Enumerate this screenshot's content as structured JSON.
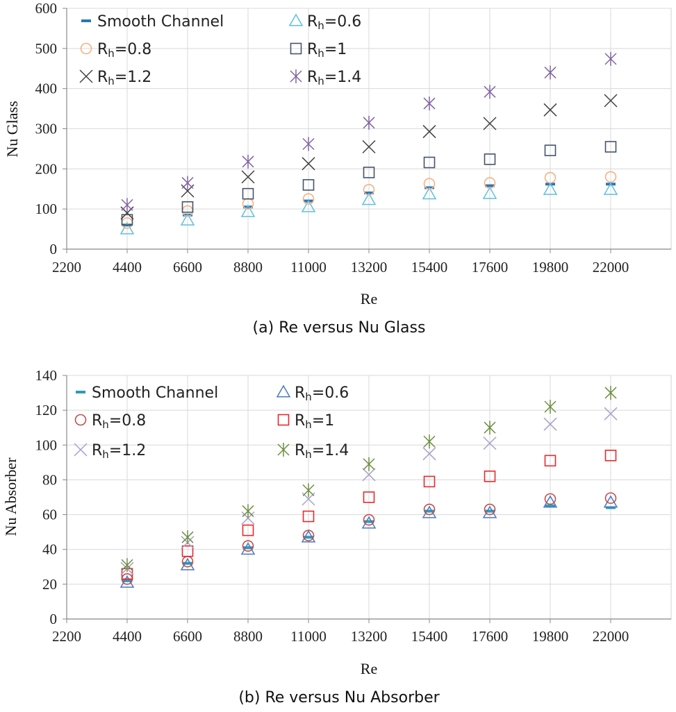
{
  "chart_data": [
    {
      "type": "scatter",
      "caption": "(a) Re versus Nu Glass",
      "xlabel": "Re",
      "ylabel": "Nu Glass",
      "x_ticks": [
        "2200",
        "4400",
        "6600",
        "8800",
        "11000",
        "13200",
        "15400",
        "17600",
        "19800",
        "22000"
      ],
      "y_ticks": [
        "0",
        "100",
        "200",
        "300",
        "400",
        "500",
        "600"
      ],
      "xlim": [
        2200,
        24200
      ],
      "ylim": [
        0,
        600
      ],
      "grid": true,
      "legend": "top-left, 2 columns",
      "series": [
        {
          "name": "Smooth Channel",
          "marker": "dash",
          "color": "#2e75b6",
          "x": [
            4400,
            6600,
            8800,
            11000,
            13200,
            15400,
            17600,
            19800,
            22000
          ],
          "y": [
            60,
            85,
            105,
            120,
            140,
            153,
            158,
            162,
            162
          ]
        },
        {
          "name": "0.6",
          "marker": "triangle",
          "color": "#5bc0de",
          "x": [
            4400,
            6600,
            8800,
            11000,
            13200,
            15400,
            17600,
            19800,
            22000
          ],
          "y": [
            50,
            72,
            93,
            105,
            123,
            137,
            138,
            148,
            148
          ]
        },
        {
          "name": "0.8",
          "marker": "circle",
          "color": "#f4b183",
          "x": [
            4400,
            6600,
            8800,
            11000,
            13200,
            15400,
            17600,
            19800,
            22000
          ],
          "y": [
            65,
            95,
            113,
            125,
            148,
            163,
            165,
            178,
            180
          ]
        },
        {
          "name": "1",
          "marker": "square",
          "color": "#44546a",
          "x": [
            4400,
            6600,
            8800,
            11000,
            13200,
            15400,
            17600,
            19800,
            22000
          ],
          "y": [
            73,
            105,
            138,
            160,
            191,
            216,
            224,
            246,
            255
          ]
        },
        {
          "name": "1.2",
          "marker": "x",
          "color": "#404040",
          "x": [
            4400,
            6600,
            8800,
            11000,
            13200,
            15400,
            17600,
            19800,
            22000
          ],
          "y": [
            90,
            145,
            180,
            213,
            255,
            293,
            313,
            347,
            370
          ]
        },
        {
          "name": "1.4",
          "marker": "star",
          "color": "#8064a2",
          "x": [
            4400,
            6600,
            8800,
            11000,
            13200,
            15400,
            17600,
            19800,
            22000
          ],
          "y": [
            110,
            165,
            218,
            262,
            315,
            363,
            392,
            440,
            474
          ]
        }
      ]
    },
    {
      "type": "scatter",
      "caption": "(b) Re versus Nu Absorber",
      "xlabel": "Re",
      "ylabel": "Nu Absorber",
      "x_ticks": [
        "2200",
        "4400",
        "6600",
        "8800",
        "11000",
        "13200",
        "15400",
        "17600",
        "19800",
        "22000"
      ],
      "y_ticks": [
        "0",
        "20",
        "40",
        "60",
        "80",
        "100",
        "120",
        "140"
      ],
      "xlim": [
        2200,
        24200
      ],
      "ylim": [
        0,
        140
      ],
      "grid": true,
      "legend": "top-left, 2 columns",
      "series": [
        {
          "name": "Smooth Channel",
          "marker": "dash",
          "color": "#2e9bb6",
          "x": [
            4400,
            6600,
            8800,
            11000,
            13200,
            15400,
            17600,
            19800,
            22000
          ],
          "y": [
            22,
            32,
            41,
            47,
            56,
            62,
            62,
            65,
            64
          ]
        },
        {
          "name": "0.6",
          "marker": "triangle",
          "color": "#4a78c2",
          "x": [
            4400,
            6600,
            8800,
            11000,
            13200,
            15400,
            17600,
            19800,
            22000
          ],
          "y": [
            21,
            31,
            40,
            47,
            55,
            61,
            61,
            67,
            67
          ]
        },
        {
          "name": "0.8",
          "marker": "circle",
          "color": "#c0504d",
          "x": [
            4400,
            6600,
            8800,
            11000,
            13200,
            15400,
            17600,
            19800,
            22000
          ],
          "y": [
            23,
            33,
            42,
            48,
            57,
            63,
            63,
            69,
            69.5
          ]
        },
        {
          "name": "1",
          "marker": "square",
          "color": "#e8282b",
          "x": [
            4400,
            6600,
            8800,
            11000,
            13200,
            15400,
            17600,
            19800,
            22000
          ],
          "y": [
            26,
            39,
            51,
            59,
            70,
            79,
            82,
            91,
            94
          ]
        },
        {
          "name": "1.2",
          "marker": "x",
          "color": "#a9a0cc",
          "x": [
            4400,
            6600,
            8800,
            11000,
            13200,
            15400,
            17600,
            19800,
            22000
          ],
          "y": [
            29,
            44,
            58,
            69,
            83,
            95,
            101,
            112,
            118
          ]
        },
        {
          "name": "1.4",
          "marker": "star",
          "color": "#6b8e3e",
          "x": [
            4400,
            6600,
            8800,
            11000,
            13200,
            15400,
            17600,
            19800,
            22000
          ],
          "y": [
            31,
            47,
            62,
            74,
            89,
            102,
            110,
            122,
            130
          ]
        }
      ]
    }
  ],
  "legend_prefix": "R",
  "legend_sub": "h",
  "legend_eq": "="
}
